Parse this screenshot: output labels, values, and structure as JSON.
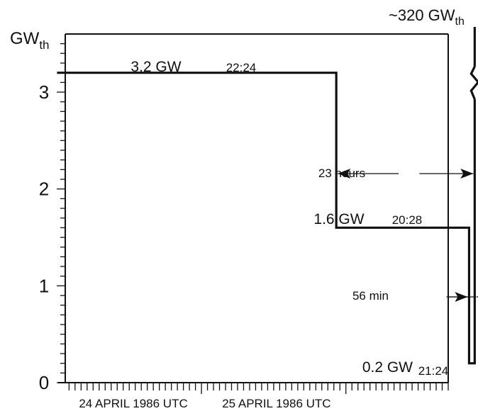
{
  "chart_data": {
    "type": "line",
    "ylabel": {
      "main": "GW",
      "sub": "th"
    },
    "y_ticks": [
      "0",
      "1",
      "2",
      "3"
    ],
    "ylim": [
      0,
      3.6
    ],
    "x_day_labels": [
      "24 APRIL 1986 UTC",
      "25 APRIL 1986 UTC"
    ],
    "series": [
      {
        "values": [
          {
            "t": "1986-04-24 00:00",
            "p": 3.2
          },
          {
            "t": "1986-04-25 22:24",
            "p": 3.2
          },
          {
            "t": "1986-04-25 22:24",
            "p": 1.6
          },
          {
            "t": "1986-04-26 20:28",
            "p": 1.6
          },
          {
            "t": "1986-04-26 20:28",
            "p": 0.2
          },
          {
            "t": "1986-04-26 21:24",
            "p": 0.2
          },
          {
            "t": "1986-04-26 21:24",
            "p": 320
          }
        ]
      }
    ],
    "labels": {
      "power_initial": "3.2 GW",
      "time_reduction": "22:24",
      "power_half": "1.6 GW",
      "time_half_end": "20:28",
      "power_low": "0.2 GW",
      "time_final": "21:24",
      "peak": {
        "main": "~320 GW",
        "sub": "th"
      },
      "interval_hours": "23 hours",
      "interval_minutes": "56 min"
    },
    "grid": false
  }
}
